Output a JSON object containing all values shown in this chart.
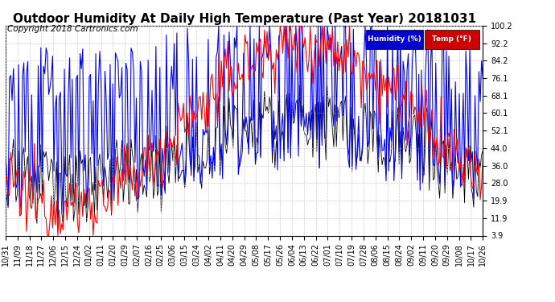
{
  "title": "Outdoor Humidity At Daily High Temperature (Past Year) 20181031",
  "copyright": "Copyright 2018 Cartronics.com",
  "yticks": [
    3.9,
    11.9,
    19.9,
    28.0,
    36.0,
    44.0,
    52.1,
    60.1,
    68.1,
    76.1,
    84.2,
    92.2,
    100.2
  ],
  "xtick_labels": [
    "10/31",
    "11/09",
    "11/18",
    "11/27",
    "12/06",
    "12/15",
    "12/24",
    "01/02",
    "01/11",
    "01/20",
    "01/29",
    "02/07",
    "02/16",
    "02/25",
    "03/06",
    "03/15",
    "03/24",
    "04/02",
    "04/11",
    "04/20",
    "04/29",
    "05/08",
    "05/17",
    "05/26",
    "06/04",
    "06/13",
    "06/22",
    "07/01",
    "07/10",
    "07/19",
    "07/28",
    "08/06",
    "08/15",
    "08/24",
    "09/02",
    "09/11",
    "09/20",
    "09/29",
    "10/08",
    "10/17",
    "10/26"
  ],
  "ymin": 3.9,
  "ymax": 100.2,
  "bg_color": "#ffffff",
  "plot_bg_color": "#ffffff",
  "grid_color": "#cccccc",
  "humidity_color": "#0000ff",
  "temp_color": "#ff0000",
  "black_color": "#000000",
  "legend_humidity_bg": "#0000cc",
  "legend_temp_bg": "#cc0000",
  "legend_humidity_text": "Humidity (%)",
  "legend_temp_text": "Temp (°F)",
  "title_fontsize": 11,
  "tick_fontsize": 7,
  "copyright_fontsize": 7.5
}
